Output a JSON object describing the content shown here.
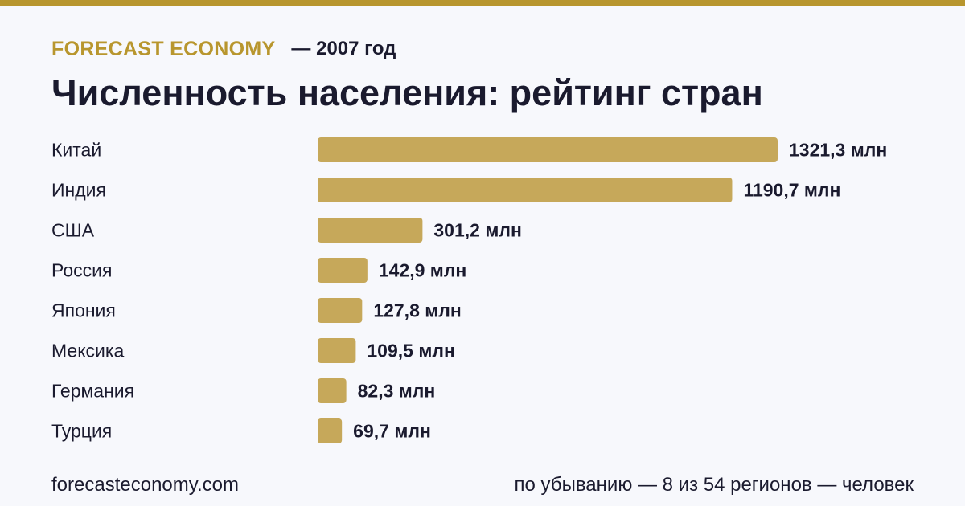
{
  "header": {
    "brand": "FORECAST ECONOMY",
    "year": "— 2007 год"
  },
  "title": "Численность населения: рейтинг стран",
  "footer": {
    "site": "forecasteconomy.com",
    "note": "по убыванию — 8 из 54 регионов — человек"
  },
  "colors": {
    "accent": "#b8962e",
    "bar": "#c6a85a",
    "text": "#1a1a2e",
    "background": "#f7f8fc"
  },
  "chart_data": {
    "type": "bar",
    "orientation": "horizontal",
    "categories": [
      "Китай",
      "Индия",
      "США",
      "Россия",
      "Япония",
      "Мексика",
      "Германия",
      "Турция"
    ],
    "values": [
      1321.3,
      1190.7,
      301.2,
      142.9,
      127.8,
      109.5,
      82.3,
      69.7
    ],
    "value_labels": [
      "1321,3 млн",
      "1190,7 млн",
      "301,2 млн",
      "142,9 млн",
      "127,8 млн",
      "109,5 млн",
      "82,3 млн",
      "69,7 млн"
    ],
    "xlim": [
      0,
      1321.3
    ],
    "grid": false,
    "legend": "none"
  }
}
